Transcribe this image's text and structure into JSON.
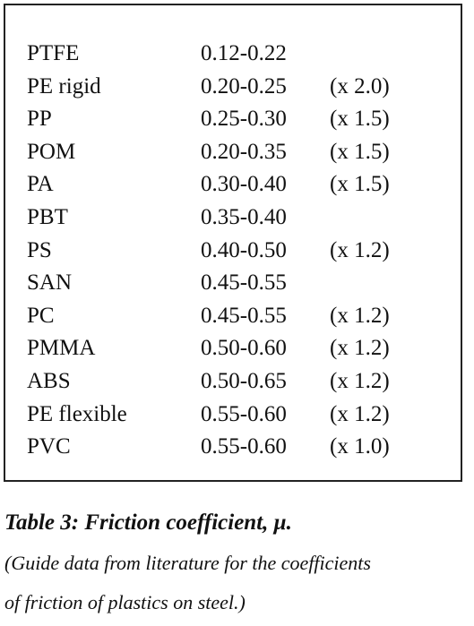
{
  "table": {
    "rows": [
      {
        "material": "PTFE",
        "range": "0.12-0.22",
        "factor": ""
      },
      {
        "material": "PE rigid",
        "range": "0.20-0.25",
        "factor": "(x 2.0)"
      },
      {
        "material": "PP",
        "range": "0.25-0.30",
        "factor": "(x 1.5)"
      },
      {
        "material": "POM",
        "range": "0.20-0.35",
        "factor": "(x 1.5)"
      },
      {
        "material": "PA",
        "range": "0.30-0.40",
        "factor": "(x 1.5)"
      },
      {
        "material": "PBT",
        "range": "0.35-0.40",
        "factor": ""
      },
      {
        "material": "PS",
        "range": "0.40-0.50",
        "factor": "(x 1.2)"
      },
      {
        "material": "SAN",
        "range": "0.45-0.55",
        "factor": ""
      },
      {
        "material": "PC",
        "range": "0.45-0.55",
        "factor": "(x 1.2)"
      },
      {
        "material": "PMMA",
        "range": "0.50-0.60",
        "factor": "(x 1.2)"
      },
      {
        "material": "ABS",
        "range": "0.50-0.65",
        "factor": "(x 1.2)"
      },
      {
        "material": "PE flexible",
        "range": "0.55-0.60",
        "factor": "(x 1.2)"
      },
      {
        "material": "PVC",
        "range": "0.55-0.60",
        "factor": "(x 1.0)"
      }
    ]
  },
  "caption": {
    "title": "Table 3: Friction coefficient, μ.",
    "note_line_1": "(Guide data from literature for the coefficients",
    "note_line_2": "of friction of plastics on steel.)"
  }
}
